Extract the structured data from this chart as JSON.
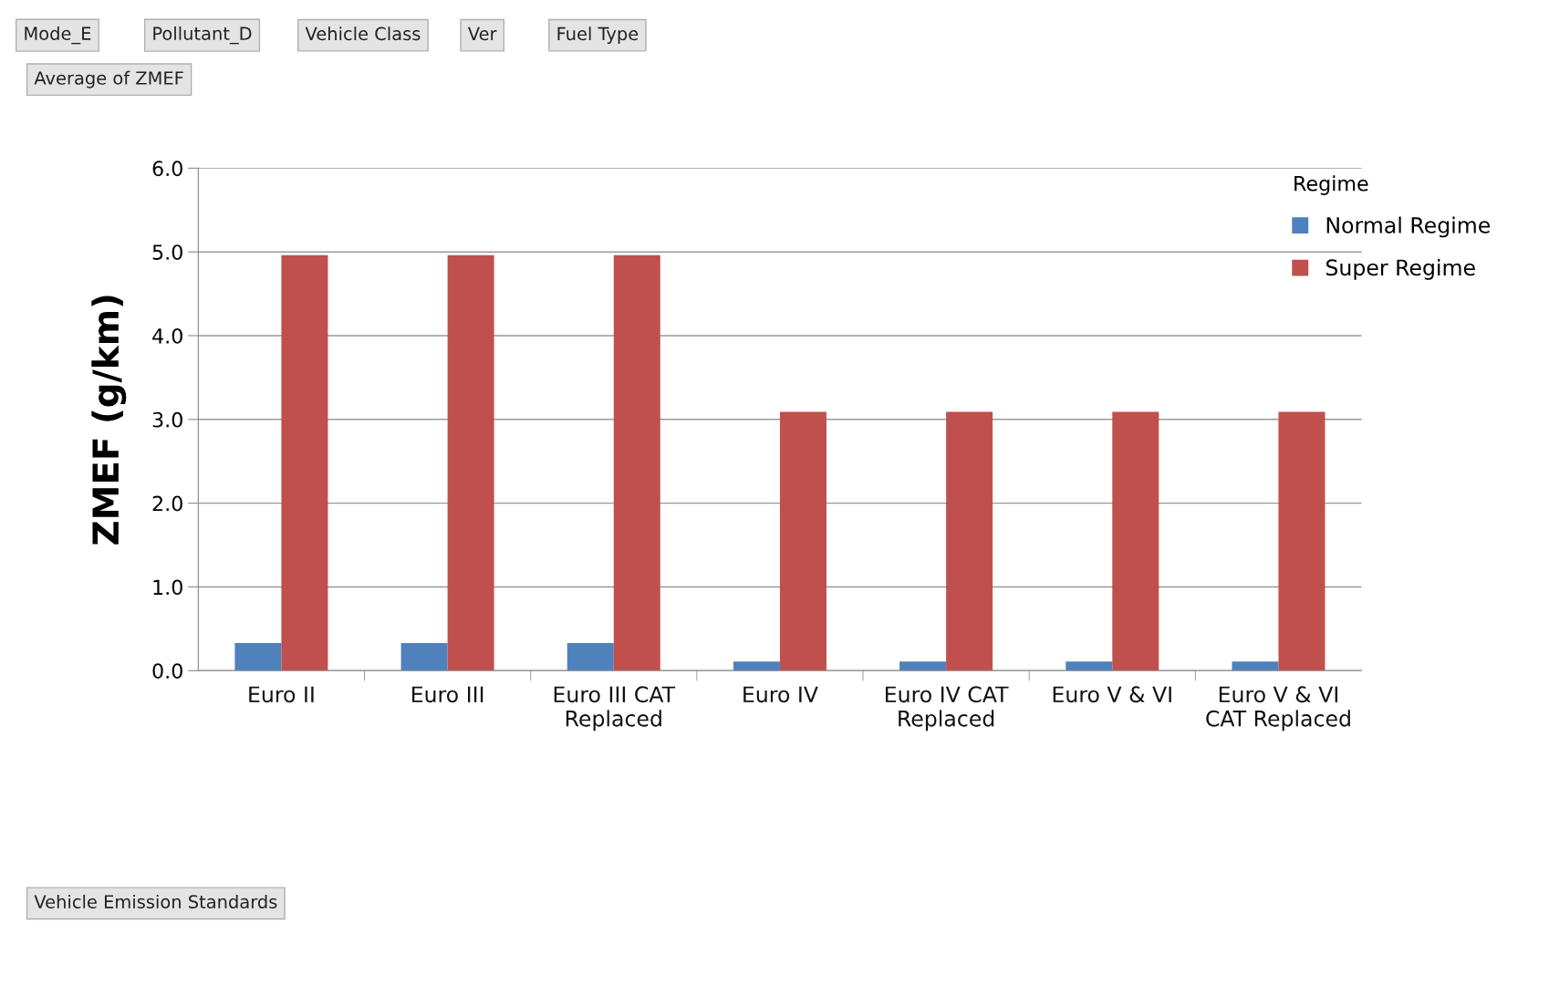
{
  "chart_data": {
    "type": "bar",
    "ylabel": "ZMEF (g/km)",
    "legend_title": "Regime",
    "categories": [
      "Euro II",
      "Euro III",
      "Euro III CAT\nReplaced",
      "Euro IV",
      "Euro IV CAT\nReplaced",
      "Euro V & VI",
      "Euro V & VI\nCAT Replaced"
    ],
    "series": [
      {
        "name": "Normal Regime",
        "color": "#4f81bd",
        "values": [
          0.33,
          0.33,
          0.33,
          0.11,
          0.11,
          0.11,
          0.11
        ]
      },
      {
        "name": "Super Regime",
        "color": "#c0504d",
        "values": [
          4.96,
          4.96,
          4.96,
          3.09,
          3.09,
          3.09,
          3.09
        ]
      }
    ],
    "ylim": [
      0,
      6
    ],
    "yticks": [
      {
        "value": 0,
        "label": "0.0"
      },
      {
        "value": 1,
        "label": "1.0"
      },
      {
        "value": 2,
        "label": "2.0"
      },
      {
        "value": 3,
        "label": "3.0"
      },
      {
        "value": 4,
        "label": "4.0"
      },
      {
        "value": 5,
        "label": "5.0"
      },
      {
        "value": 6,
        "label": "6.0"
      }
    ],
    "grid": "y",
    "legend": "top right",
    "annotations": [
      "Mode_E",
      "Pollutant_D",
      "Vehicle Class",
      "Ver",
      "Fuel Type",
      "Average of ZMEF",
      "Vehicle Emission Standards"
    ]
  }
}
